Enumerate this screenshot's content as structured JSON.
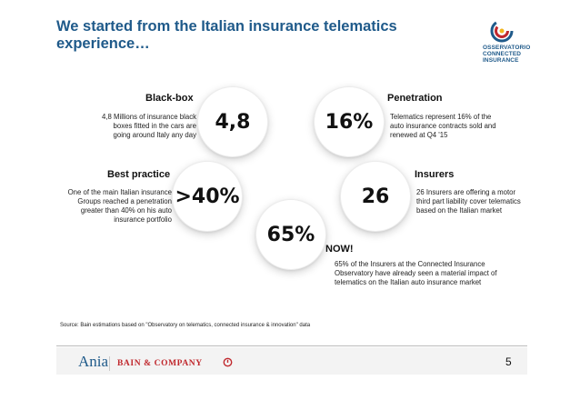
{
  "title": "We started from the Italian insurance telematics experience…",
  "logo": {
    "icon": "observatorio-logo-icon",
    "line1": "OSSERVATORIO",
    "line2": "CONNECTED",
    "line3": "INSURANCE",
    "colors": {
      "blue": "#1f5a8a",
      "red": "#c0282d",
      "yellow": "#f2b51d"
    }
  },
  "items": {
    "blackbox": {
      "heading": "Black-box",
      "value": "4,8",
      "desc": "4,8 Millions of insurance black boxes fitted in the cars are going around Italy any day"
    },
    "penetration": {
      "heading": "Penetration",
      "value": "16%",
      "desc": "Telematics represent 16% of the auto insurance contracts sold and renewed at Q4 '15"
    },
    "best": {
      "heading": "Best practice",
      "value": ">40%",
      "desc": "One of the main Italian insurance Groups reached a penetration greater than 40% on his auto insurance portfolio"
    },
    "insurers": {
      "heading": "Insurers",
      "value": "26",
      "desc": "26 Insurers are offering a motor third part liability cover telematics based on the Italian market"
    },
    "now": {
      "heading": "NOW!",
      "value": "65%",
      "desc": "65% of the Insurers at the Connected Insurance Observatory have already seen a material impact of telematics on the Italian auto insurance market"
    }
  },
  "source": "Source: Bain estimations based on \"Observatory on telematics, connected insurance & innovation\" data",
  "footer": {
    "ania": "Ania",
    "bain": "BAIN & COMPANY",
    "page": "5"
  }
}
